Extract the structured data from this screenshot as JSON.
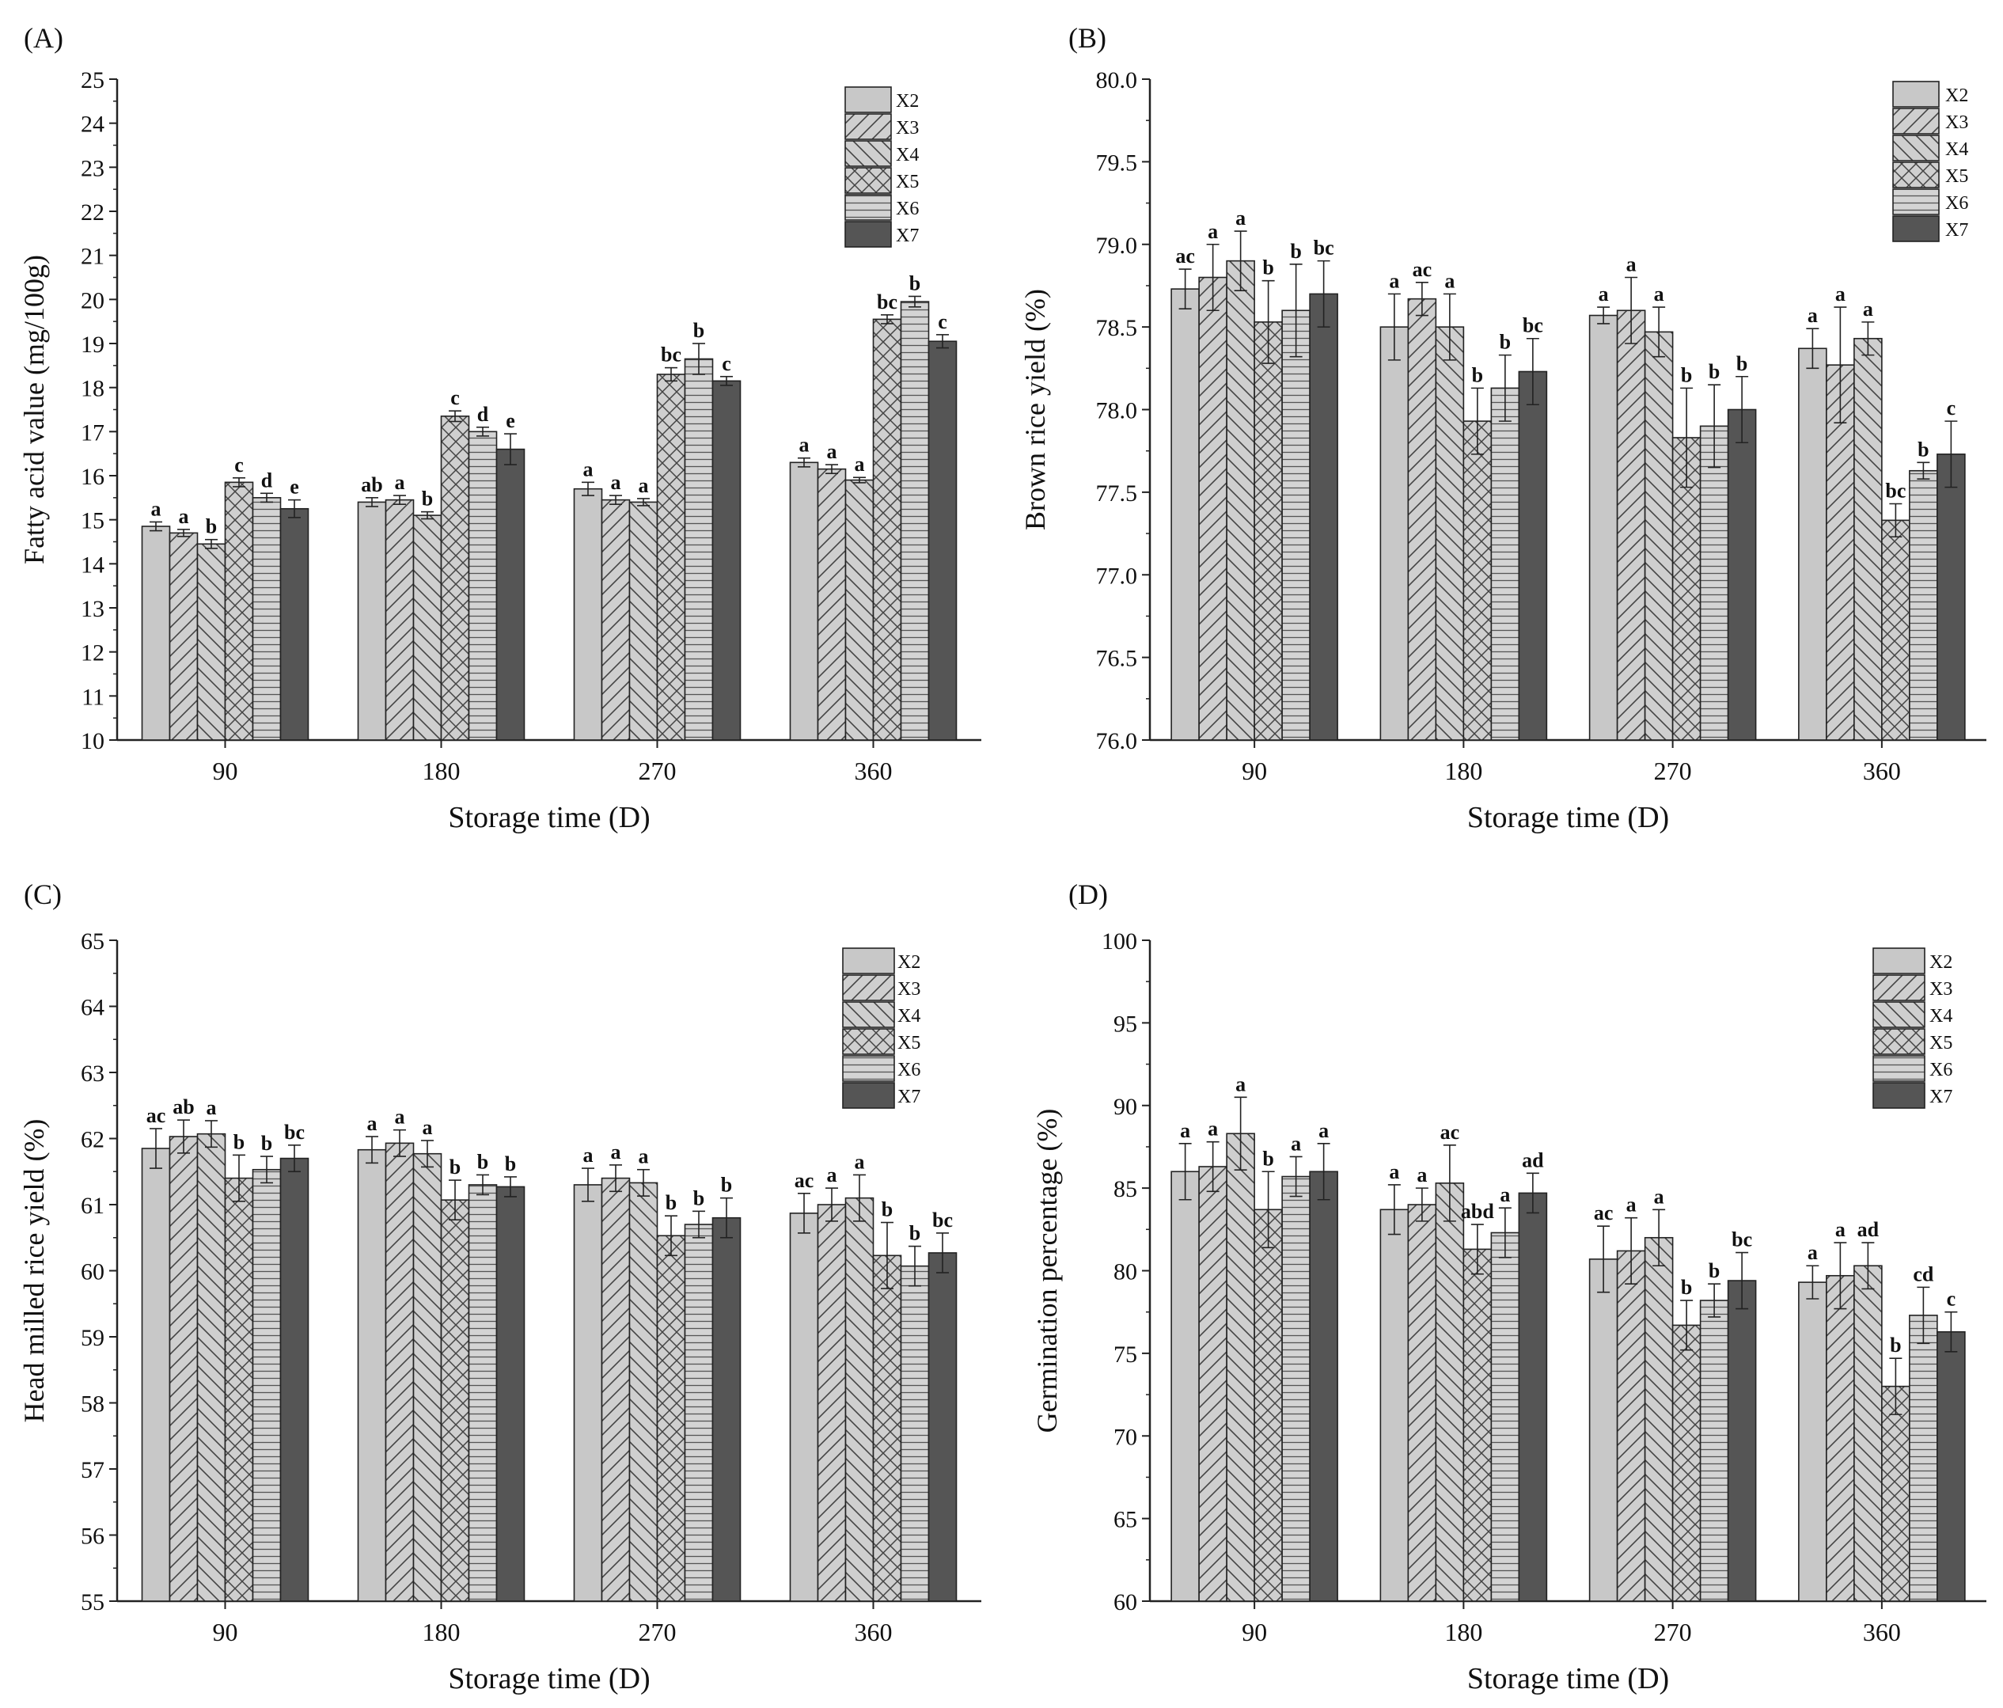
{
  "figure": {
    "colors": {
      "axis": "#222222",
      "X2_fill": "#c8c8c8",
      "X7_fill": "#555555",
      "pattern_bg": "#cfcfcf",
      "pattern_line": "#444444"
    }
  },
  "chart_data": [
    {
      "panel": "(A)",
      "type": "bar",
      "title": "",
      "xlabel": "Storage time (D)",
      "ylabel": "Fatty acid value (mg/100g)",
      "ylim": [
        10,
        25
      ],
      "yticks": [
        "10",
        "11",
        "12",
        "13",
        "14",
        "15",
        "16",
        "17",
        "18",
        "19",
        "20",
        "21",
        "22",
        "23",
        "24",
        "25"
      ],
      "legend_position": "top-right",
      "categories": [
        "90",
        "180",
        "270",
        "360"
      ],
      "series": [
        {
          "name": "X2",
          "pattern": "solid-light",
          "values": [
            14.85,
            15.4,
            15.7,
            16.3
          ],
          "errors": [
            0.1,
            0.1,
            0.15,
            0.1
          ],
          "labels": [
            "a",
            "ab",
            "a",
            "a"
          ]
        },
        {
          "name": "X3",
          "pattern": "diag-right",
          "values": [
            14.7,
            15.45,
            15.45,
            16.15
          ],
          "errors": [
            0.08,
            0.1,
            0.1,
            0.1
          ],
          "labels": [
            "a",
            "a",
            "a",
            "a"
          ]
        },
        {
          "name": "X4",
          "pattern": "diag-left",
          "values": [
            14.45,
            15.1,
            15.4,
            15.9
          ],
          "errors": [
            0.1,
            0.08,
            0.08,
            0.06
          ],
          "labels": [
            "b",
            "b",
            "a",
            "a"
          ]
        },
        {
          "name": "X5",
          "pattern": "cross",
          "values": [
            15.85,
            17.35,
            18.3,
            19.55
          ],
          "errors": [
            0.1,
            0.12,
            0.15,
            0.1
          ],
          "labels": [
            "c",
            "c",
            "bc",
            "bc"
          ]
        },
        {
          "name": "X6",
          "pattern": "horizontal",
          "values": [
            15.5,
            17.0,
            18.65,
            19.95
          ],
          "errors": [
            0.1,
            0.1,
            0.35,
            0.12
          ],
          "labels": [
            "d",
            "d",
            "b",
            "b"
          ]
        },
        {
          "name": "X7",
          "pattern": "solid-dark",
          "values": [
            15.25,
            16.6,
            18.15,
            19.05
          ],
          "errors": [
            0.2,
            0.35,
            0.1,
            0.15
          ],
          "labels": [
            "e",
            "e",
            "c",
            "c"
          ]
        }
      ]
    },
    {
      "panel": "(B)",
      "type": "bar",
      "title": "",
      "xlabel": "Storage time (D)",
      "ylabel": "Brown rice yield (%)",
      "ylim": [
        76.0,
        80.0
      ],
      "yticks": [
        "76.0",
        "76.5",
        "77.0",
        "77.5",
        "78.0",
        "78.5",
        "79.0",
        "79.5",
        "80.0"
      ],
      "legend_position": "top-right",
      "categories": [
        "90",
        "180",
        "270",
        "360"
      ],
      "series": [
        {
          "name": "X2",
          "pattern": "solid-light",
          "values": [
            78.73,
            78.5,
            78.57,
            78.37
          ],
          "errors": [
            0.12,
            0.2,
            0.05,
            0.12
          ],
          "labels": [
            "ac",
            "a",
            "a",
            "a"
          ]
        },
        {
          "name": "X3",
          "pattern": "diag-right",
          "values": [
            78.8,
            78.67,
            78.6,
            78.27
          ],
          "errors": [
            0.2,
            0.1,
            0.2,
            0.35
          ],
          "labels": [
            "a",
            "ac",
            "a",
            "a"
          ]
        },
        {
          "name": "X4",
          "pattern": "diag-left",
          "values": [
            78.9,
            78.5,
            78.47,
            78.43
          ],
          "errors": [
            0.18,
            0.2,
            0.15,
            0.1
          ],
          "labels": [
            "a",
            "a",
            "a",
            "a"
          ]
        },
        {
          "name": "X5",
          "pattern": "cross",
          "values": [
            78.53,
            77.93,
            77.83,
            77.33
          ],
          "errors": [
            0.25,
            0.2,
            0.3,
            0.1
          ],
          "labels": [
            "b",
            "b",
            "b",
            "bc"
          ]
        },
        {
          "name": "X6",
          "pattern": "horizontal",
          "values": [
            78.6,
            78.13,
            77.9,
            77.63
          ],
          "errors": [
            0.28,
            0.2,
            0.25,
            0.05
          ],
          "labels": [
            "b",
            "b",
            "b",
            "b"
          ]
        },
        {
          "name": "X7",
          "pattern": "solid-dark",
          "values": [
            78.7,
            78.23,
            78.0,
            77.73
          ],
          "errors": [
            0.2,
            0.2,
            0.2,
            0.2
          ],
          "labels": [
            "bc",
            "bc",
            "b",
            "c"
          ]
        }
      ]
    },
    {
      "panel": "(C)",
      "type": "bar",
      "title": "",
      "xlabel": "Storage time (D)",
      "ylabel": "Head milled rice yield (%)",
      "ylim": [
        55,
        65
      ],
      "yticks": [
        "55",
        "56",
        "57",
        "58",
        "59",
        "60",
        "61",
        "62",
        "63",
        "64",
        "65"
      ],
      "legend_position": "top-right",
      "categories": [
        "90",
        "180",
        "270",
        "360"
      ],
      "series": [
        {
          "name": "X2",
          "pattern": "solid-light",
          "values": [
            61.85,
            61.83,
            61.3,
            60.87
          ],
          "errors": [
            0.3,
            0.2,
            0.25,
            0.3
          ],
          "labels": [
            "ac",
            "a",
            "a",
            "ac"
          ]
        },
        {
          "name": "X3",
          "pattern": "diag-right",
          "values": [
            62.03,
            61.93,
            61.4,
            61.0
          ],
          "errors": [
            0.25,
            0.2,
            0.2,
            0.25
          ],
          "labels": [
            "ab",
            "a",
            "a",
            "a"
          ]
        },
        {
          "name": "X4",
          "pattern": "diag-left",
          "values": [
            62.07,
            61.77,
            61.33,
            61.1
          ],
          "errors": [
            0.2,
            0.2,
            0.2,
            0.35
          ],
          "labels": [
            "a",
            "a",
            "a",
            "a"
          ]
        },
        {
          "name": "X5",
          "pattern": "cross",
          "values": [
            61.4,
            61.07,
            60.53,
            60.23
          ],
          "errors": [
            0.35,
            0.3,
            0.3,
            0.5
          ],
          "labels": [
            "b",
            "b",
            "b",
            "b"
          ]
        },
        {
          "name": "X6",
          "pattern": "horizontal",
          "values": [
            61.53,
            61.3,
            60.7,
            60.07
          ],
          "errors": [
            0.2,
            0.15,
            0.2,
            0.3
          ],
          "labels": [
            "b",
            "b",
            "b",
            "b"
          ]
        },
        {
          "name": "X7",
          "pattern": "solid-dark",
          "values": [
            61.7,
            61.27,
            60.8,
            60.27
          ],
          "errors": [
            0.2,
            0.15,
            0.3,
            0.3
          ],
          "labels": [
            "bc",
            "b",
            "b",
            "bc"
          ]
        }
      ]
    },
    {
      "panel": "(D)",
      "type": "bar",
      "title": "",
      "xlabel": "Storage time (D)",
      "ylabel": "Germination percentage (%)",
      "ylim": [
        60,
        100
      ],
      "yticks": [
        "60",
        "65",
        "70",
        "75",
        "80",
        "85",
        "90",
        "95",
        "100"
      ],
      "legend_position": "top-right",
      "categories": [
        "90",
        "180",
        "270",
        "360"
      ],
      "series": [
        {
          "name": "X2",
          "pattern": "solid-light",
          "values": [
            86.0,
            83.7,
            80.7,
            79.3
          ],
          "errors": [
            1.7,
            1.5,
            2.0,
            1.0
          ],
          "labels": [
            "a",
            "a",
            "ac",
            "a"
          ]
        },
        {
          "name": "X3",
          "pattern": "diag-right",
          "values": [
            86.3,
            84.0,
            81.2,
            79.7
          ],
          "errors": [
            1.5,
            1.0,
            2.0,
            2.0
          ],
          "labels": [
            "a",
            "a",
            "a",
            "a"
          ]
        },
        {
          "name": "X4",
          "pattern": "diag-left",
          "values": [
            88.3,
            85.3,
            82.0,
            80.3
          ],
          "errors": [
            2.2,
            2.3,
            1.7,
            1.4
          ],
          "labels": [
            "a",
            "ac",
            "a",
            "ad"
          ]
        },
        {
          "name": "X5",
          "pattern": "cross",
          "values": [
            83.7,
            81.3,
            76.7,
            73.0
          ],
          "errors": [
            2.3,
            1.5,
            1.5,
            1.7
          ],
          "labels": [
            "b",
            "abd",
            "b",
            "b"
          ]
        },
        {
          "name": "X6",
          "pattern": "horizontal",
          "values": [
            85.7,
            82.3,
            78.2,
            77.3
          ],
          "errors": [
            1.2,
            1.5,
            1.0,
            1.7
          ],
          "labels": [
            "a",
            "a",
            "b",
            "cd"
          ]
        },
        {
          "name": "X7",
          "pattern": "solid-dark",
          "values": [
            86.0,
            84.7,
            79.4,
            76.3
          ],
          "errors": [
            1.7,
            1.2,
            1.7,
            1.2
          ],
          "labels": [
            "a",
            "ad",
            "bc",
            "c"
          ]
        }
      ]
    }
  ]
}
